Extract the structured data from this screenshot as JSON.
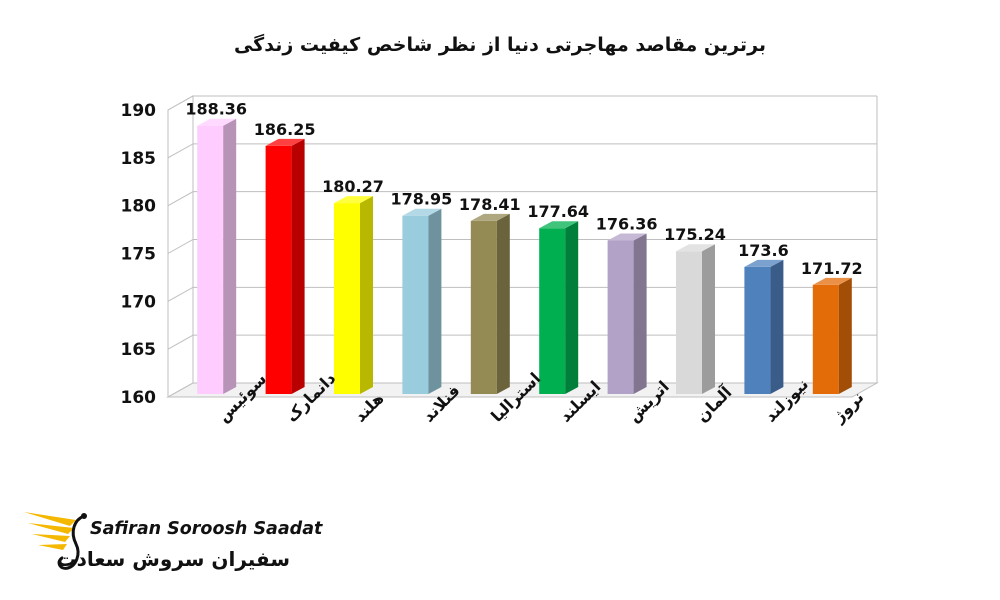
{
  "chart_data": {
    "type": "bar",
    "title": "برترین مقاصد مهاجرتی دنیا از نظر شاخص کیفیت زندگی",
    "categories": [
      "سوئیس",
      "دانمارک",
      "هلند",
      "فنلاند",
      "استرالیا",
      "ایسلند",
      "اتریش",
      "آلمان",
      "نیوزلند",
      "نروژ"
    ],
    "values": [
      188.36,
      186.25,
      180.27,
      178.95,
      178.41,
      177.64,
      176.36,
      175.24,
      173.6,
      171.72
    ],
    "value_labels": [
      "188.36",
      "186.25",
      "180.27",
      "178.95",
      "178.41",
      "177.64",
      "176.36",
      "175.24",
      "173.6",
      "171.72"
    ],
    "colors": [
      "#ffccff",
      "#ff0000",
      "#ffff00",
      "#99ccdd",
      "#948a54",
      "#00b050",
      "#b3a2c7",
      "#d9d9d9",
      "#4f81bd",
      "#e36c09"
    ],
    "ylim": [
      160,
      190
    ],
    "yticks": [
      160,
      165,
      170,
      175,
      180,
      185,
      190
    ],
    "grid": true,
    "legend": "none",
    "style": "3d-columns"
  },
  "logo": {
    "text_en": "Safiran Soroosh Saadat",
    "text_fa": "سفیران سروش سعادت",
    "accent": "#f5b800"
  }
}
